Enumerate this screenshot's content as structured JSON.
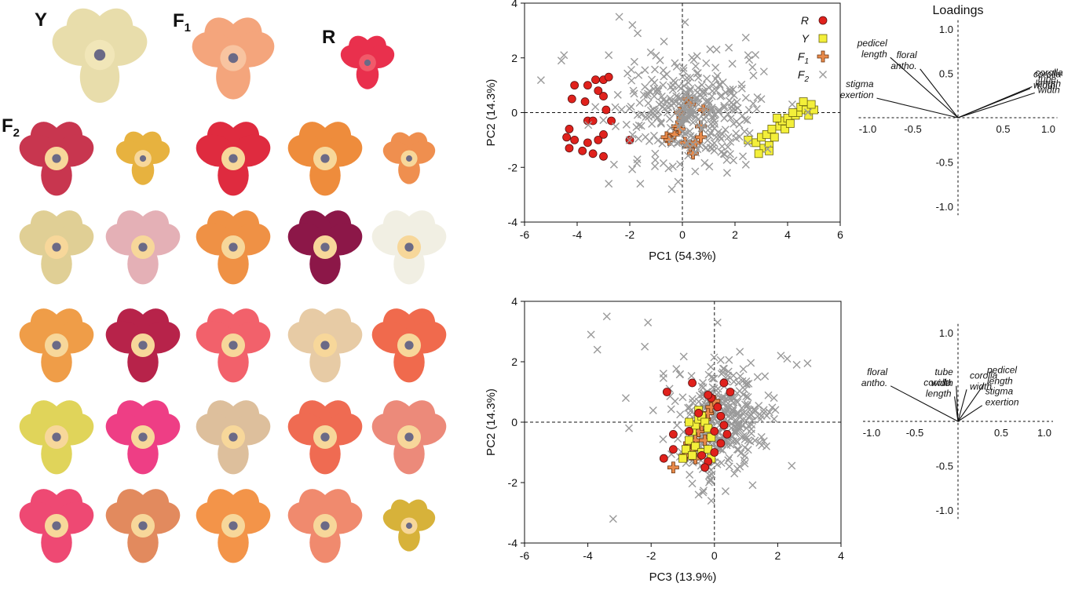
{
  "flower_panel": {
    "labels": {
      "Y": {
        "main": "Y",
        "sub": ""
      },
      "F1": {
        "main": "F",
        "sub": "1"
      },
      "R": {
        "main": "R",
        "sub": ""
      },
      "F2": {
        "main": "F",
        "sub": "2"
      }
    },
    "parents": [
      {
        "id": "Y",
        "petal": "#e8ddab",
        "throat": "#f1e6b8"
      },
      {
        "id": "F1",
        "petal": "#f4a57c",
        "throat": "#f8c4a0"
      },
      {
        "id": "R",
        "petal": "#e9304d",
        "throat": "#f15a6a"
      }
    ],
    "f2_colors": [
      [
        "#c8364f",
        "#e7b23f",
        "#df2b3f",
        "#ee8c3c",
        "#ef8f4f"
      ],
      [
        "#e0cf95",
        "#e4b0b6",
        "#ef9145",
        "#8c1748",
        "#f1efe3"
      ],
      [
        "#ef9d48",
        "#b7234a",
        "#f2616b",
        "#e7cba5",
        "#f06a4d"
      ],
      [
        "#e0d45a",
        "#ee3e85",
        "#ddbf9c",
        "#ef6b52",
        "#ec8a7a"
      ],
      [
        "#ee4973",
        "#e28a5e",
        "#f39449",
        "#f08a6e",
        "#d7b23a"
      ]
    ]
  },
  "chart_data": [
    {
      "type": "scatter",
      "xlabel": "PC1 (54.3%)",
      "ylabel": "PC2 (14.3%)",
      "xlim": [
        -6,
        6
      ],
      "ylim": [
        -4,
        4
      ],
      "xticks": [
        "-6",
        "-4",
        "-2",
        "0",
        "2",
        "4",
        "6"
      ],
      "yticks": [
        "4",
        "2",
        "0",
        "-2",
        "-4"
      ],
      "legend_position": "top-right",
      "legend": [
        {
          "label": "R",
          "sub": "",
          "marker": "circle",
          "color": "#e0211c"
        },
        {
          "label": "Y",
          "sub": "",
          "marker": "square",
          "color": "#f3ef3a"
        },
        {
          "label": "F",
          "sub": "1",
          "marker": "plus",
          "color": "#e88a4a"
        },
        {
          "label": "F",
          "sub": "2",
          "marker": "x",
          "color": "#9a9a9a"
        }
      ],
      "series": [
        {
          "name": "R",
          "marker": "circle",
          "color": "#e0211c",
          "points": [
            [
              -4.1,
              1.0
            ],
            [
              -3.6,
              1.0
            ],
            [
              -3.3,
              1.2
            ],
            [
              -3.0,
              1.2
            ],
            [
              -2.8,
              1.3
            ],
            [
              -4.2,
              0.5
            ],
            [
              -3.2,
              0.8
            ],
            [
              -3.0,
              0.6
            ],
            [
              -2.9,
              0.1
            ],
            [
              -3.6,
              -0.3
            ],
            [
              -3.4,
              -0.3
            ],
            [
              -2.7,
              -0.3
            ],
            [
              -4.3,
              -0.6
            ],
            [
              -4.4,
              -0.9
            ],
            [
              -4.1,
              -1.0
            ],
            [
              -3.6,
              -1.1
            ],
            [
              -3.2,
              -1.0
            ],
            [
              -3.0,
              -0.8
            ],
            [
              -4.3,
              -1.3
            ],
            [
              -3.8,
              -1.4
            ],
            [
              -3.4,
              -1.5
            ],
            [
              -3.0,
              -1.6
            ],
            [
              -2.0,
              -1.0
            ],
            [
              -3.7,
              0.4
            ]
          ]
        },
        {
          "name": "Y",
          "marker": "square",
          "color": "#f3ef3a",
          "points": [
            [
              2.5,
              -1.0
            ],
            [
              2.8,
              -1.1
            ],
            [
              3.0,
              -0.9
            ],
            [
              3.1,
              -1.3
            ],
            [
              3.3,
              -1.2
            ],
            [
              3.2,
              -0.8
            ],
            [
              3.4,
              -0.6
            ],
            [
              3.5,
              -0.9
            ],
            [
              3.7,
              -0.5
            ],
            [
              3.9,
              -0.6
            ],
            [
              3.8,
              -0.3
            ],
            [
              4.0,
              -0.2
            ],
            [
              4.1,
              -0.4
            ],
            [
              4.3,
              -0.1
            ],
            [
              4.4,
              0.0
            ],
            [
              4.5,
              0.2
            ],
            [
              4.7,
              0.1
            ],
            [
              4.8,
              -0.1
            ],
            [
              5.0,
              0.1
            ],
            [
              4.9,
              0.3
            ],
            [
              4.6,
              0.4
            ],
            [
              3.6,
              -0.2
            ],
            [
              3.3,
              -1.4
            ],
            [
              2.9,
              -1.5
            ],
            [
              4.2,
              0.0
            ]
          ]
        },
        {
          "name": "F1",
          "marker": "plus",
          "color": "#e88a4a",
          "points": [
            [
              0.2,
              0.5
            ],
            [
              0.3,
              0.3
            ],
            [
              -0.1,
              0.0
            ],
            [
              0.0,
              -0.2
            ],
            [
              -0.2,
              -0.5
            ],
            [
              -0.3,
              -0.8
            ],
            [
              -0.6,
              -0.9
            ],
            [
              -0.5,
              -1.0
            ],
            [
              0.1,
              -1.1
            ],
            [
              0.3,
              -1.2
            ],
            [
              0.5,
              -1.1
            ],
            [
              0.7,
              -0.9
            ],
            [
              0.7,
              -0.5
            ],
            [
              0.4,
              -1.5
            ],
            [
              0.8,
              0.1
            ],
            [
              -0.1,
              -0.6
            ]
          ]
        },
        {
          "name": "F2",
          "marker": "x",
          "color": "#9a9a9a",
          "scatter": {
            "count": 320,
            "cx": 0.3,
            "cy": 0.0,
            "sx": 1.35,
            "sy": 0.95,
            "seed": 7
          },
          "points": [
            [
              -2.4,
              3.5
            ],
            [
              -1.9,
              3.2
            ],
            [
              0.1,
              3.3
            ],
            [
              -1.7,
              2.9
            ],
            [
              -4.5,
              2.1
            ],
            [
              -4.6,
              1.9
            ],
            [
              -0.7,
              2.6
            ],
            [
              1.3,
              2.3
            ],
            [
              2.5,
              2.1
            ],
            [
              3.1,
              1.5
            ],
            [
              -2.8,
              2.1
            ],
            [
              -1.2,
              2.2
            ],
            [
              -1.6,
              -2.6
            ],
            [
              -2.8,
              -2.6
            ],
            [
              -0.4,
              -2.8
            ],
            [
              1.7,
              -2.2
            ],
            [
              2.3,
              -1.6
            ],
            [
              -2.6,
              -1.9
            ]
          ]
        }
      ]
    },
    {
      "type": "scatter",
      "xlabel": "PC3 (13.9%)",
      "ylabel": "PC2 (14.3%)",
      "xlim": [
        -6,
        4
      ],
      "ylim": [
        -4,
        4
      ],
      "xticks": [
        "-6",
        "-4",
        "-2",
        "0",
        "2",
        "4"
      ],
      "yticks": [
        "4",
        "2",
        "0",
        "-2",
        "-4"
      ],
      "series": [
        {
          "name": "F2",
          "marker": "x",
          "color": "#9a9a9a",
          "scatter": {
            "count": 340,
            "cx": 0.2,
            "cy": 0.0,
            "sx": 0.75,
            "sy": 0.95,
            "seed": 13
          },
          "points": [
            [
              -3.9,
              2.9
            ],
            [
              -3.4,
              3.5
            ],
            [
              -2.1,
              3.3
            ],
            [
              0.1,
              3.3
            ],
            [
              -3.7,
              2.4
            ],
            [
              -2.2,
              2.5
            ],
            [
              2.1,
              2.2
            ],
            [
              2.3,
              2.1
            ],
            [
              2.6,
              1.9
            ],
            [
              -3.2,
              -3.2
            ],
            [
              -0.1,
              -2.6
            ],
            [
              -0.5,
              -2.4
            ],
            [
              -2.8,
              0.8
            ],
            [
              -2.7,
              -0.2
            ]
          ]
        },
        {
          "name": "F1",
          "marker": "plus",
          "color": "#e88a4a",
          "points": [
            [
              -1.3,
              -1.5
            ],
            [
              -0.9,
              -1.1
            ],
            [
              -0.7,
              -0.9
            ],
            [
              -0.6,
              -0.6
            ],
            [
              -0.5,
              -0.3
            ],
            [
              -0.4,
              -0.1
            ],
            [
              -0.3,
              0.1
            ],
            [
              -0.2,
              0.3
            ],
            [
              -0.1,
              0.5
            ],
            [
              0.0,
              0.7
            ],
            [
              -0.8,
              -0.7
            ],
            [
              -0.6,
              -1.2
            ],
            [
              -0.3,
              -0.6
            ]
          ]
        },
        {
          "name": "Y",
          "marker": "square",
          "color": "#f3ef3a",
          "points": [
            [
              -1.0,
              -1.2
            ],
            [
              -0.9,
              -0.9
            ],
            [
              -0.8,
              -0.6
            ],
            [
              -0.7,
              -0.3
            ],
            [
              -0.6,
              -0.1
            ],
            [
              -0.5,
              0.1
            ],
            [
              -0.4,
              0.2
            ],
            [
              -0.3,
              0.0
            ],
            [
              -0.2,
              -0.2
            ],
            [
              -0.1,
              -0.5
            ],
            [
              -0.6,
              -0.8
            ],
            [
              -0.4,
              -1.0
            ],
            [
              -0.2,
              -0.9
            ],
            [
              -0.1,
              -1.2
            ],
            [
              -0.5,
              0.4
            ],
            [
              -0.8,
              0.0
            ],
            [
              -0.7,
              -1.1
            ]
          ]
        },
        {
          "name": "R",
          "marker": "circle",
          "color": "#e0211c",
          "points": [
            [
              -1.5,
              1.0
            ],
            [
              -0.7,
              1.3
            ],
            [
              0.3,
              1.3
            ],
            [
              0.5,
              1.0
            ],
            [
              -0.1,
              0.8
            ],
            [
              0.1,
              0.5
            ],
            [
              0.2,
              0.2
            ],
            [
              0.3,
              -0.1
            ],
            [
              0.4,
              -0.4
            ],
            [
              0.2,
              -0.7
            ],
            [
              0.0,
              -1.0
            ],
            [
              -0.2,
              -1.3
            ],
            [
              -0.3,
              -1.5
            ],
            [
              -1.6,
              -1.2
            ],
            [
              -1.3,
              -0.9
            ],
            [
              -1.3,
              -0.4
            ],
            [
              -0.4,
              -1.1
            ],
            [
              -0.2,
              0.9
            ],
            [
              -0.5,
              0.3
            ],
            [
              0.0,
              -0.3
            ],
            [
              -0.8,
              -0.3
            ]
          ]
        }
      ]
    },
    {
      "type": "biplot",
      "title": "Loadings",
      "xlim": [
        -1.0,
        1.0
      ],
      "ylim": [
        -1.0,
        1.0
      ],
      "xticks": [
        "-1.0",
        "-0.5",
        "0.5",
        "1.0"
      ],
      "yticks": [
        "1.0",
        "0.5",
        "-0.5",
        "-1.0"
      ],
      "vectors": [
        {
          "lines": [
            "pedicel",
            "length"
          ],
          "x": -0.75,
          "y": 0.68
        },
        {
          "lines": [
            "floral",
            "antho."
          ],
          "x": -0.42,
          "y": 0.55
        },
        {
          "lines": [
            "stigma",
            "exertion"
          ],
          "x": -0.9,
          "y": 0.22
        },
        {
          "lines": [
            "corolla",
            "width"
          ],
          "x": 0.8,
          "y": 0.33
        },
        {
          "lines": [
            "corolla",
            "length"
          ],
          "x": 0.82,
          "y": 0.35
        },
        {
          "lines": [
            "tube",
            "width"
          ],
          "x": 0.85,
          "y": 0.28
        }
      ]
    },
    {
      "type": "biplot",
      "title": "",
      "xlim": [
        -1.0,
        1.0
      ],
      "ylim": [
        -1.0,
        1.0
      ],
      "xticks": [
        "-1.0",
        "-0.5",
        "0.5",
        "1.0"
      ],
      "yticks": [
        "1.0",
        "-0.5",
        "-1.0"
      ],
      "vectors": [
        {
          "lines": [
            "tube",
            "width"
          ],
          "x": -0.02,
          "y": 0.4
        },
        {
          "lines": [
            "corolla",
            "width"
          ],
          "x": 0.1,
          "y": 0.36
        },
        {
          "lines": [
            "pedicel",
            "length"
          ],
          "x": 0.3,
          "y": 0.42
        },
        {
          "lines": [
            "corolla",
            "length"
          ],
          "x": -0.04,
          "y": 0.28
        },
        {
          "lines": [
            "stigma",
            "exertion"
          ],
          "x": 0.28,
          "y": 0.18
        },
        {
          "lines": [
            "floral",
            "antho."
          ],
          "x": -0.78,
          "y": 0.4
        }
      ]
    }
  ]
}
